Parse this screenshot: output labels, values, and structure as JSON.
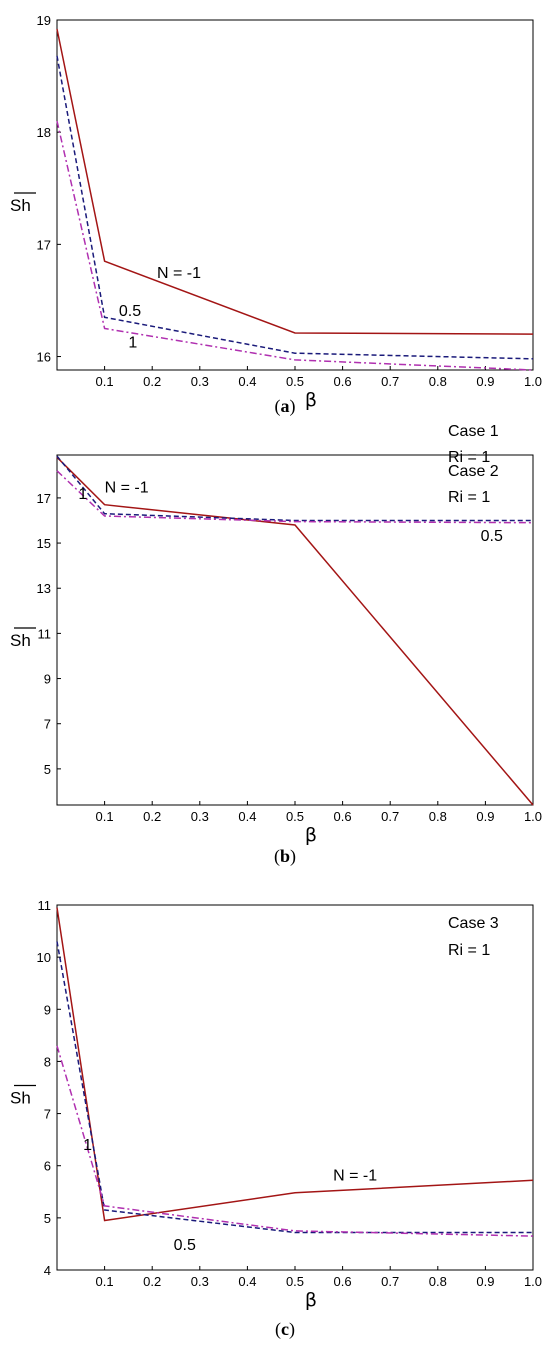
{
  "chart_data": [
    {
      "type": "line",
      "caption_open": "(",
      "caption_letter": "a",
      "caption_close": ")",
      "title_lines": [
        "Case 1",
        "Ri = 1"
      ],
      "xlabel": "β",
      "ylabel": "Sh",
      "x": [
        0,
        0.1,
        0.5,
        1.0
      ],
      "xlim": [
        0,
        1.0
      ],
      "ylim": [
        15.88,
        19
      ],
      "xticks": [
        "0.1",
        "0.2",
        "0.3",
        "0.4",
        "0.5",
        "0.6",
        "0.7",
        "0.8",
        "0.9",
        "1.0"
      ],
      "yticks": [
        16,
        17,
        18,
        19
      ],
      "series": [
        {
          "name": "N = -1",
          "values": [
            18.92,
            16.85,
            16.21,
            16.2
          ],
          "color": "#a31515",
          "dash": "solid"
        },
        {
          "name": "0.5",
          "values": [
            18.68,
            16.35,
            16.03,
            15.98
          ],
          "color": "#1a1a7a",
          "dash": "dash"
        },
        {
          "name": "1",
          "values": [
            18.1,
            16.25,
            15.97,
            15.88
          ],
          "color": "#b030b0",
          "dash": "dashdot"
        }
      ],
      "annotations": [
        {
          "text": "N = -1",
          "x": 0.21,
          "y": 16.7
        },
        {
          "text": "0.5",
          "x": 0.13,
          "y": 16.36
        },
        {
          "text": "1",
          "x": 0.15,
          "y": 16.08
        }
      ]
    },
    {
      "type": "line",
      "caption_open": "(",
      "caption_letter": "b",
      "caption_close": ")",
      "title_lines": [
        "Case 2",
        "Ri = 1"
      ],
      "xlabel": "β",
      "ylabel": "Sh",
      "x": [
        0,
        0.1,
        0.5,
        1.0
      ],
      "xlim": [
        0,
        1.0
      ],
      "ylim": [
        3.4,
        18.9
      ],
      "xticks": [
        "0.1",
        "0.2",
        "0.3",
        "0.4",
        "0.5",
        "0.6",
        "0.7",
        "0.8",
        "0.9",
        "1.0"
      ],
      "yticks": [
        5,
        7,
        9,
        11,
        13,
        15,
        17
      ],
      "series": [
        {
          "name": "N = -1",
          "values": [
            18.8,
            16.7,
            15.8,
            3.4
          ],
          "color": "#a31515",
          "dash": "solid"
        },
        {
          "name": "0.5",
          "values": [
            18.85,
            16.3,
            16.0,
            16.0
          ],
          "color": "#1a1a7a",
          "dash": "dash"
        },
        {
          "name": "1",
          "values": [
            18.2,
            16.2,
            15.95,
            15.9
          ],
          "color": "#b030b0",
          "dash": "dashdot"
        }
      ],
      "annotations": [
        {
          "text": "N = -1",
          "x": 0.1,
          "y": 17.25
        },
        {
          "text": "1",
          "x": 0.045,
          "y": 16.95
        },
        {
          "text": "0.5",
          "x": 0.89,
          "y": 15.1
        }
      ]
    },
    {
      "type": "line",
      "caption_open": "(",
      "caption_letter": "c",
      "caption_close": ")",
      "title_lines": [
        "Case 3",
        "Ri = 1"
      ],
      "xlabel": "β",
      "ylabel": "Sh",
      "x": [
        0,
        0.1,
        0.5,
        1.0
      ],
      "xlim": [
        0,
        1.0
      ],
      "ylim": [
        4,
        11
      ],
      "xticks": [
        "0.1",
        "0.2",
        "0.3",
        "0.4",
        "0.5",
        "0.6",
        "0.7",
        "0.8",
        "0.9",
        "1.0"
      ],
      "yticks": [
        4,
        5,
        6,
        7,
        8,
        9,
        10,
        11
      ],
      "series": [
        {
          "name": "N = -1",
          "values": [
            10.95,
            4.95,
            5.48,
            5.72
          ],
          "color": "#a31515",
          "dash": "solid"
        },
        {
          "name": "0.5",
          "values": [
            10.3,
            5.15,
            4.72,
            4.72
          ],
          "color": "#1a1a7a",
          "dash": "dash"
        },
        {
          "name": "1",
          "values": [
            8.3,
            5.23,
            4.75,
            4.65
          ],
          "color": "#b030b0",
          "dash": "dashdot"
        }
      ],
      "annotations": [
        {
          "text": "N = -1",
          "x": 0.58,
          "y": 5.72
        },
        {
          "text": "0.5",
          "x": 0.245,
          "y": 4.38
        },
        {
          "text": "1",
          "x": 0.055,
          "y": 6.3
        }
      ]
    }
  ]
}
